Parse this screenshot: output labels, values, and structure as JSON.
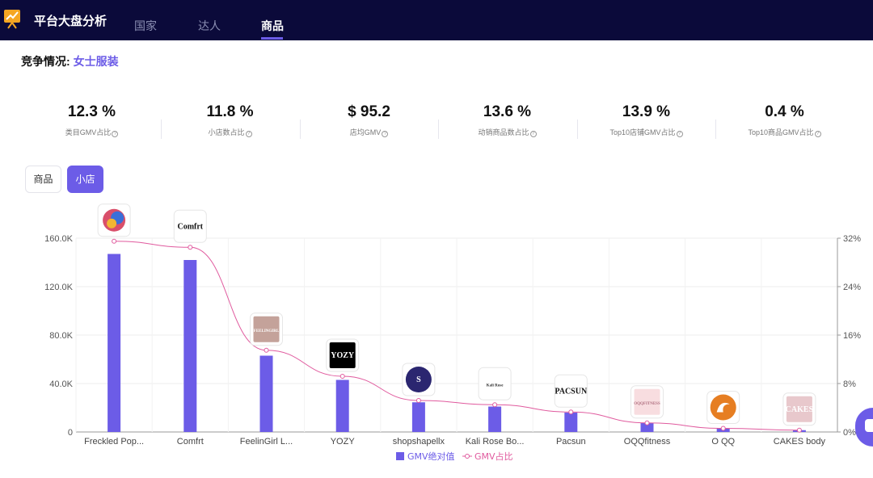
{
  "app": {
    "title": "平台大盘分析"
  },
  "nav": {
    "tabs": [
      {
        "label": "国家"
      },
      {
        "label": "达人"
      },
      {
        "label": "商品",
        "active": true
      }
    ]
  },
  "heading": {
    "prefix": "竞争情况:",
    "category": "女士服装"
  },
  "stats": [
    {
      "value": "12.3 %",
      "label": "类目GMV占比"
    },
    {
      "value": "11.8 %",
      "label": "小店数占比"
    },
    {
      "value": "$ 95.2",
      "label": "店均GMV"
    },
    {
      "value": "13.6 %",
      "label": "动销商品数占比"
    },
    {
      "value": "13.9 %",
      "label": "Top10店铺GMV占比"
    },
    {
      "value": "0.4 %",
      "label": "Top10商品GMV占比"
    }
  ],
  "toggles": {
    "product": "商品",
    "shop": "小店",
    "selected": "小店"
  },
  "colors": {
    "bar": "#6c5ce7",
    "line": "#e05a9e",
    "topbar": "#0b0a3a",
    "accent": "#6c5ce7"
  },
  "chart_data": {
    "type": "bar",
    "categories": [
      "Freckled Pop...",
      "Comfrt",
      "FeelinGirl L...",
      "YOZY",
      "shopshapellx",
      "Kali Rose Bo...",
      "Pacsun",
      "OQQfitness",
      "O QQ",
      "CAKES body"
    ],
    "series": [
      {
        "name": "GMV绝对值",
        "type": "bar",
        "axis": "left",
        "values": [
          147000,
          142000,
          63000,
          43000,
          24500,
          21000,
          16000,
          7500,
          3000,
          1500
        ]
      },
      {
        "name": "GMV占比",
        "type": "line",
        "axis": "right",
        "values": [
          31.5,
          30.5,
          13.5,
          9.2,
          5.2,
          4.5,
          3.3,
          1.5,
          0.6,
          0.3
        ]
      }
    ],
    "left_axis": {
      "ticks": [
        "0",
        "40.0K",
        "80.0K",
        "120.0K",
        "160.0K"
      ],
      "ylim": [
        0,
        160000
      ]
    },
    "right_axis": {
      "ticks": [
        "0%",
        "8%",
        "16%",
        "24%",
        "32%"
      ],
      "ylim": [
        0,
        32
      ]
    },
    "grid": true,
    "legend": "bottom-center",
    "shop_logos": [
      {
        "text": "",
        "bg": "#ffffff",
        "icon": "colorful-circle-logo"
      },
      {
        "text": "Comfrt",
        "bg": "#ffffff",
        "fg": "#111111"
      },
      {
        "text": "FEELINGIRL",
        "bg": "#c4a29a",
        "fg": "#ffffff"
      },
      {
        "text": "YOZY",
        "bg": "#000000",
        "fg": "#ffffff"
      },
      {
        "text": "S",
        "bg": "#2b2670",
        "fg": "#ffffff",
        "icon": "circle-monogram-logo"
      },
      {
        "text": "Kali Rose",
        "bg": "#ffffff",
        "fg": "#333333"
      },
      {
        "text": "PACSUN",
        "bg": "#ffffff",
        "fg": "#111111"
      },
      {
        "text": "OQQFITNESS",
        "bg": "#f8dde0",
        "fg": "#b07080"
      },
      {
        "text": "",
        "bg": "#e67e22",
        "fg": "#ffffff",
        "icon": "swoosh-circle-logo"
      },
      {
        "text": "CAKES",
        "bg": "#e8c8cc",
        "fg": "#ffffff"
      }
    ]
  }
}
